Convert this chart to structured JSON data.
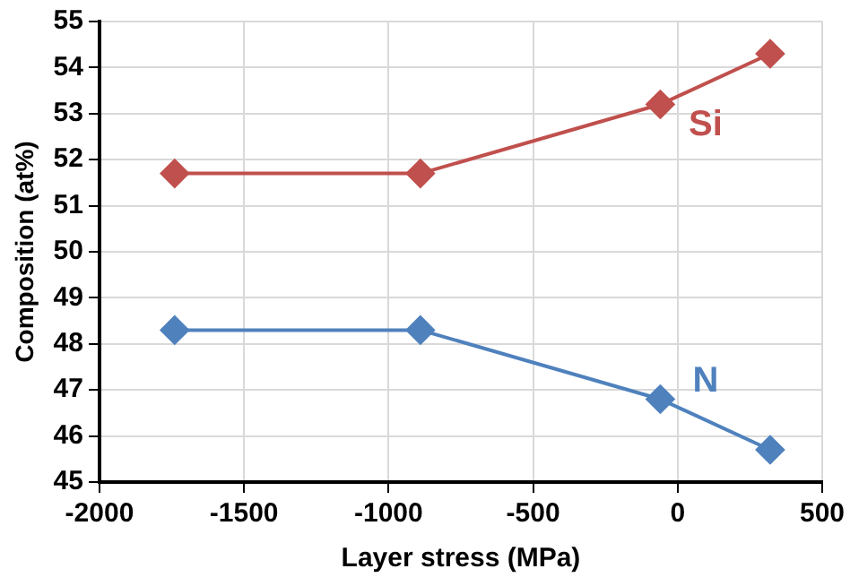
{
  "chart_data": {
    "type": "line",
    "xlabel": "Layer stress (MPa)",
    "ylabel": "Composition (at%)",
    "x": [
      -1740,
      -890,
      -60,
      320
    ],
    "series": [
      {
        "name": "Si",
        "color": "#c0504d",
        "values": [
          51.7,
          51.7,
          53.2,
          54.3
        ]
      },
      {
        "name": "N",
        "color": "#4f81bd",
        "values": [
          48.3,
          48.3,
          46.8,
          45.7
        ]
      }
    ],
    "xlim": [
      -2000,
      500
    ],
    "xticks": [
      -2000,
      -1500,
      -1000,
      -500,
      0,
      500
    ],
    "ylim": [
      45,
      55
    ],
    "yticks": [
      45,
      46,
      47,
      48,
      49,
      50,
      51,
      52,
      53,
      54,
      55
    ],
    "grid": true,
    "legend": false,
    "marker": "diamond",
    "line_style": "solid"
  }
}
